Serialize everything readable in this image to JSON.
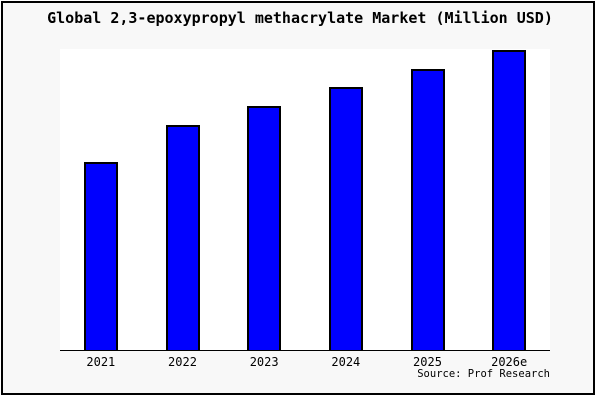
{
  "chart_data": {
    "type": "bar",
    "title": "Global 2,3-epoxypropyl methacrylate Market (Million USD)",
    "categories": [
      "2021",
      "2022",
      "2023",
      "2024",
      "2025",
      "2026e"
    ],
    "values": [
      0.625,
      0.75,
      0.8125,
      0.875,
      0.9375,
      1.0
    ],
    "values_unit": "relative bar height (no y-axis tick labels shown; tallest bar 2026e = 1.0)",
    "xlabel": "",
    "ylabel": "",
    "legend": false,
    "grid": false,
    "y_axis_labels_visible": false,
    "source_note": "Source: Prof Research"
  },
  "colors": {
    "bar_fill": "#0000fe",
    "bar_border": "#000000",
    "figure_background": "#f8f8f8",
    "plot_background": "#ffffff",
    "axis_line": "#000000",
    "frame_border": "#000000",
    "text": "#000000"
  }
}
